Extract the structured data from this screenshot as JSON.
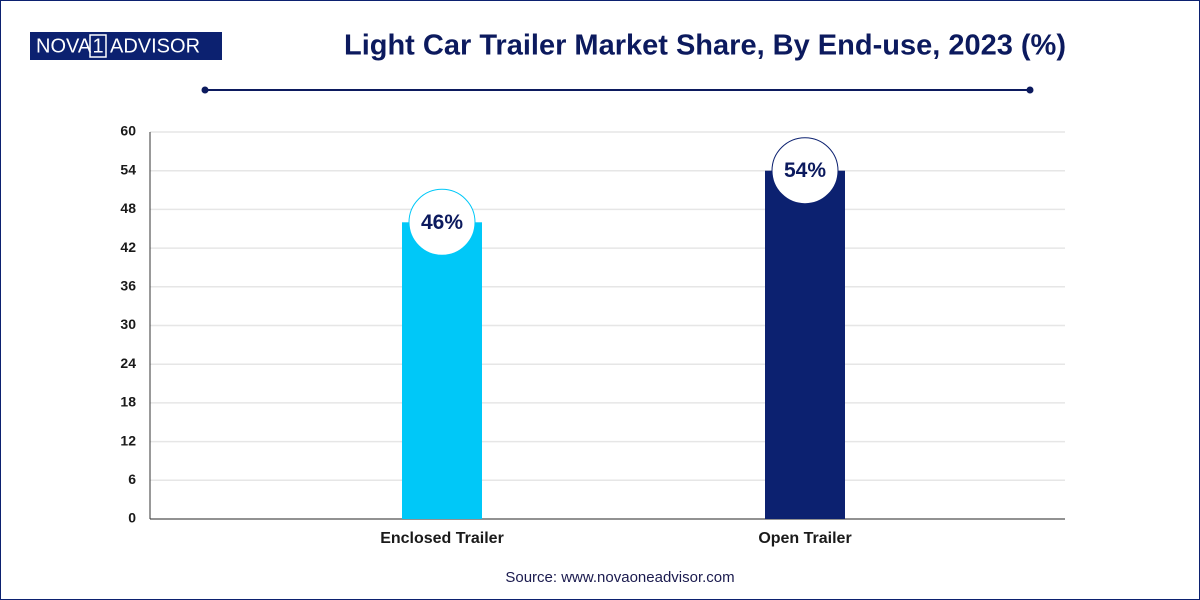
{
  "logo": {
    "left": "NOVA",
    "middle": "1",
    "right": "ADVISOR"
  },
  "chart_data": {
    "type": "bar",
    "title": "Light Car Trailer Market Share, By End-use, 2023 (%)",
    "categories": [
      "Enclosed Trailer",
      "Open Trailer"
    ],
    "values": [
      46,
      54
    ],
    "value_labels": [
      "46%",
      "54%"
    ],
    "colors": [
      "#00c8f8",
      "#0c2170"
    ],
    "ylim": [
      0,
      60
    ],
    "yticks": [
      0,
      6,
      12,
      18,
      24,
      30,
      36,
      42,
      48,
      54,
      60
    ],
    "grid": true,
    "source": "Source: www.novaoneadvisor.com"
  }
}
